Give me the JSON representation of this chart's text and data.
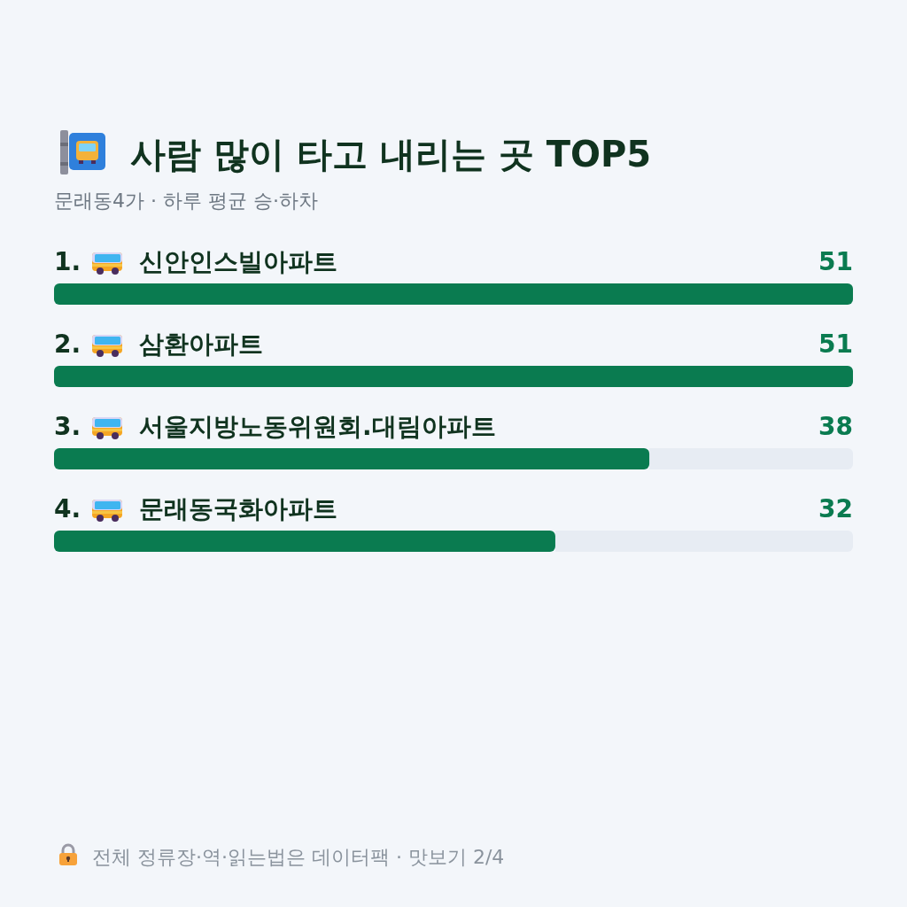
{
  "chart_data": {
    "type": "bar",
    "orientation": "horizontal",
    "title": "사람 많이 타고 내리는 곳 TOP5",
    "subtitle": "문래동4가 · 하루 평균 승·하차",
    "categories": [
      "1. 신안인스빌아파트",
      "2. 삼환아파트",
      "3. 서울지방노동위원회.대림아파트",
      "4. 문래동국화아파트"
    ],
    "values": [
      51,
      51,
      38,
      32
    ],
    "color": "#0a7b50",
    "xlim": [
      0,
      51
    ],
    "data_labels": true,
    "annotations": [
      "전체 정류장·역·읽는법은 데이터팩 · 맛보기 2/4"
    ]
  }
}
